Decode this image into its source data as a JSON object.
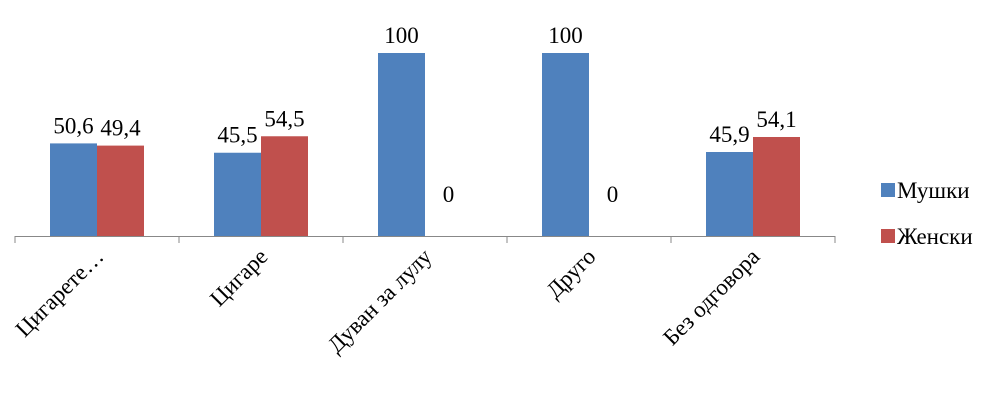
{
  "chart_data": {
    "type": "bar",
    "categories": [
      "Цигарете…",
      "Цигаре",
      "Дуван за лулу",
      "Друго",
      "Без одговора"
    ],
    "series": [
      {
        "name": "Мушки",
        "values": [
          50.6,
          45.5,
          100,
          100,
          45.9
        ],
        "labels": [
          "50,6",
          "45,5",
          "100",
          "100",
          "45,9"
        ],
        "color": "#4F81BD"
      },
      {
        "name": "Женски",
        "values": [
          49.4,
          54.5,
          0,
          0,
          54.1
        ],
        "labels": [
          "49,4",
          "54,5",
          "0",
          "0",
          "54,1"
        ],
        "color": "#C0504D"
      }
    ],
    "ylim": [
      0,
      100
    ],
    "grid": false,
    "legend_position": "right"
  }
}
